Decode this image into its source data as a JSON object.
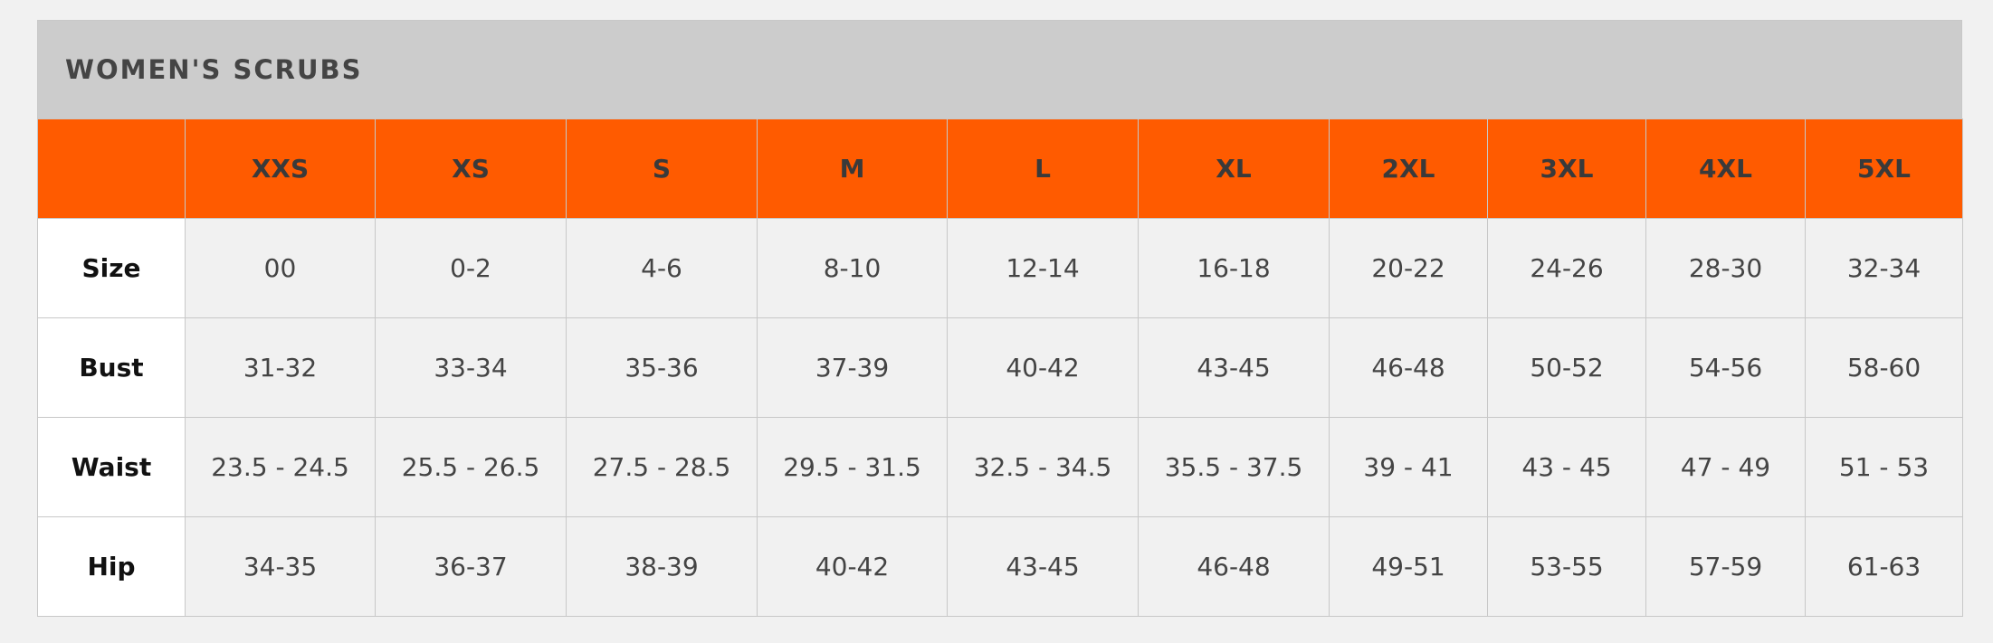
{
  "title": "WOMEN'S SCRUBS",
  "table": {
    "columns": [
      "XXS",
      "XS",
      "S",
      "M",
      "L",
      "XL",
      "2XL",
      "3XL",
      "4XL",
      "5XL"
    ],
    "rows": [
      {
        "label": "Size",
        "cells": [
          "00",
          "0-2",
          "4-6",
          "8-10",
          "12-14",
          "16-18",
          "20-22",
          "24-26",
          "28-30",
          "32-34"
        ]
      },
      {
        "label": "Bust",
        "cells": [
          "31-32",
          "33-34",
          "35-36",
          "37-39",
          "40-42",
          "43-45",
          "46-48",
          "50-52",
          "54-56",
          "58-60"
        ]
      },
      {
        "label": "Waist",
        "cells": [
          "23.5 - 24.5",
          "25.5 - 26.5",
          "27.5 - 28.5",
          "29.5 - 31.5",
          "32.5 - 34.5",
          "35.5 - 37.5",
          "39 - 41",
          "43 - 45",
          "47 - 49",
          "51 - 53"
        ]
      },
      {
        "label": "Hip",
        "cells": [
          "34-35",
          "36-37",
          "38-39",
          "40-42",
          "43-45",
          "46-48",
          "49-51",
          "53-55",
          "57-59",
          "61-63"
        ]
      }
    ]
  }
}
